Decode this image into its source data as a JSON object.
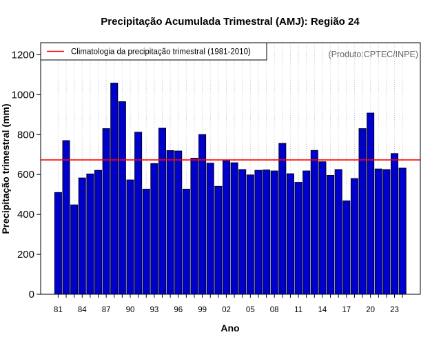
{
  "colors": {
    "bar_fill": "#0000cc",
    "bar_stroke": "#000000",
    "climatology_line": "#ff0000",
    "grid": "#c8c8c8",
    "credit": "#666666"
  },
  "chart_data": {
    "type": "bar",
    "title": "Precipitação Acumulada Trimestral (AMJ): Região 24",
    "xlabel": "Ano",
    "ylabel": "Precipitação trimestral (mm)",
    "credit": "(Produto:CPTEC/INPE)",
    "ylim": [
      0,
      1260
    ],
    "yticks": [
      0,
      200,
      400,
      600,
      800,
      1000,
      1200
    ],
    "grid": "vertical dotted, one per year",
    "legend_position": "top-left",
    "years": [
      1981,
      1982,
      1983,
      1984,
      1985,
      1986,
      1987,
      1988,
      1989,
      1990,
      1991,
      1992,
      1993,
      1994,
      1995,
      1996,
      1997,
      1998,
      1999,
      2000,
      2001,
      2002,
      2003,
      2004,
      2005,
      2006,
      2007,
      2008,
      2009,
      2010,
      2011,
      2012,
      2013,
      2014,
      2015,
      2016,
      2017,
      2018,
      2019,
      2020,
      2021,
      2022,
      2023,
      2024
    ],
    "values": [
      510,
      770,
      448,
      583,
      603,
      621,
      830,
      1058,
      965,
      573,
      812,
      527,
      655,
      832,
      720,
      718,
      527,
      682,
      800,
      657,
      541,
      669,
      659,
      625,
      598,
      621,
      623,
      618,
      756,
      604,
      561,
      618,
      721,
      664,
      596,
      625,
      468,
      580,
      830,
      908,
      628,
      625,
      705,
      632
    ],
    "xtick_labels": [
      "81",
      "84",
      "87",
      "90",
      "93",
      "96",
      "99",
      "02",
      "05",
      "08",
      "11",
      "14",
      "17",
      "20",
      "23"
    ],
    "xtick_years": [
      1981,
      1984,
      1987,
      1990,
      1993,
      1996,
      1999,
      2002,
      2005,
      2008,
      2011,
      2014,
      2017,
      2020,
      2023
    ],
    "climatology": {
      "label": "Climatologia da precipitação trimestral (1981-2010)",
      "value": 673
    }
  }
}
